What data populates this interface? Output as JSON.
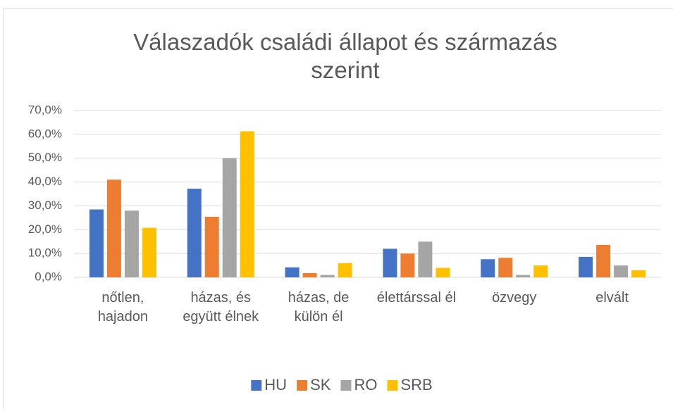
{
  "chart_data": {
    "type": "bar",
    "title": "Válaszadók családi állapot és származás szerint",
    "categories": [
      "nőtlen, hajadon",
      "házas, és együtt élnek",
      "házas, de külön él",
      "élettárssal él",
      "özvegy",
      "elvált"
    ],
    "series": [
      {
        "name": "HU",
        "color": "#4472c4",
        "values": [
          28.5,
          37.2,
          4.2,
          12.0,
          7.6,
          8.6
        ]
      },
      {
        "name": "SK",
        "color": "#ed7d31",
        "values": [
          41.0,
          25.4,
          1.8,
          10.0,
          8.2,
          13.6
        ]
      },
      {
        "name": "RO",
        "color": "#a5a5a5",
        "values": [
          28.0,
          50.0,
          1.0,
          15.0,
          1.0,
          5.0
        ]
      },
      {
        "name": "SRB",
        "color": "#ffc000",
        "values": [
          20.8,
          61.3,
          6.0,
          4.0,
          5.0,
          3.0
        ]
      }
    ],
    "ylim": [
      0,
      70
    ],
    "yticks": [
      {
        "value": 0,
        "label": "0,0%"
      },
      {
        "value": 10,
        "label": "10,0%"
      },
      {
        "value": 20,
        "label": "20,0%"
      },
      {
        "value": 30,
        "label": "30,0%"
      },
      {
        "value": 40,
        "label": "40,0%"
      },
      {
        "value": 50,
        "label": "50,0%"
      },
      {
        "value": 60,
        "label": "60,0%"
      },
      {
        "value": 70,
        "label": "70,0%"
      }
    ],
    "grid": true,
    "legend": "bottom"
  }
}
